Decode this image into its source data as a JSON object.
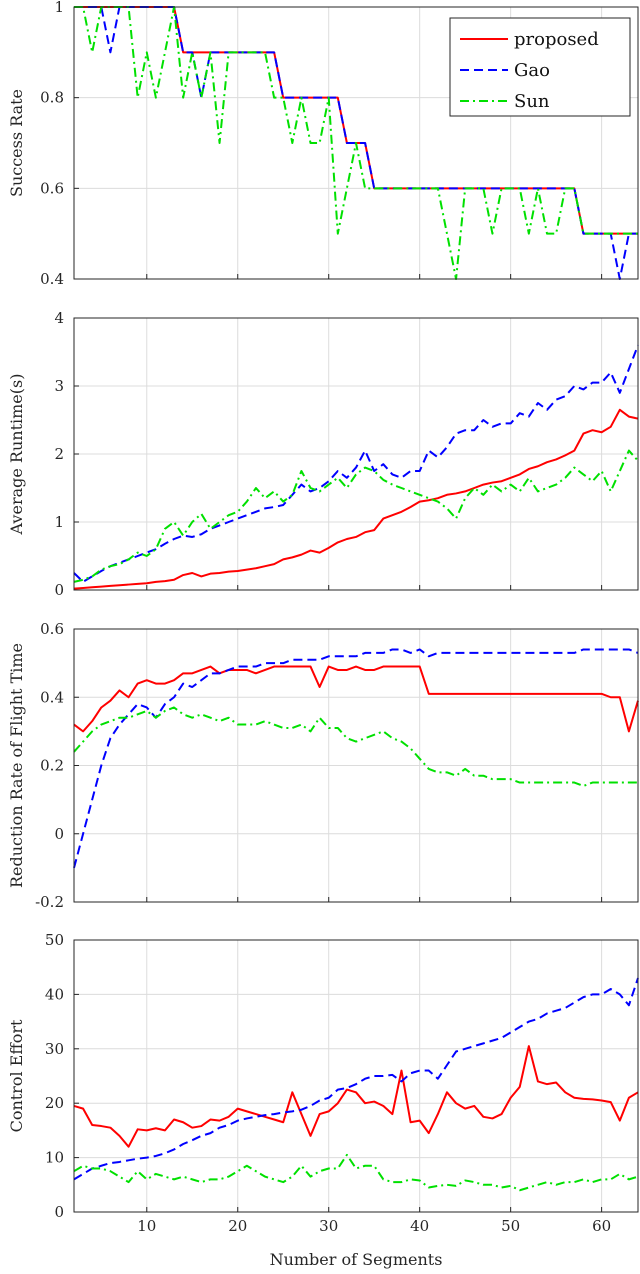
{
  "chart_data": [
    {
      "type": "line",
      "ylabel": "Success Rate",
      "xlabel": "",
      "xlim": [
        2,
        64
      ],
      "ylim": [
        0.4,
        1
      ],
      "xticks": [
        10,
        20,
        30,
        40,
        50,
        60
      ],
      "yticks": [
        0.4,
        0.6,
        0.8,
        1
      ],
      "ytick_labels": [
        "0.4",
        "0.6",
        "0.8",
        "1"
      ],
      "grid": true,
      "legend": "top-right",
      "x": [
        2,
        3,
        4,
        5,
        6,
        7,
        8,
        9,
        10,
        11,
        12,
        13,
        14,
        15,
        16,
        17,
        18,
        19,
        20,
        21,
        22,
        23,
        24,
        25,
        26,
        27,
        28,
        29,
        30,
        31,
        32,
        33,
        34,
        35,
        36,
        37,
        38,
        39,
        40,
        41,
        42,
        43,
        44,
        45,
        46,
        47,
        48,
        49,
        50,
        51,
        52,
        53,
        54,
        55,
        56,
        57,
        58,
        59,
        60,
        61,
        62,
        63,
        64
      ],
      "series": [
        {
          "name": "proposed",
          "color": "#ff0000",
          "dash": "solid",
          "values": [
            1,
            1,
            1,
            1,
            1,
            1,
            1,
            1,
            1,
            1,
            1,
            1,
            0.9,
            0.9,
            0.9,
            0.9,
            0.9,
            0.9,
            0.9,
            0.9,
            0.9,
            0.9,
            0.9,
            0.8,
            0.8,
            0.8,
            0.8,
            0.8,
            0.8,
            0.8,
            0.7,
            0.7,
            0.7,
            0.6,
            0.6,
            0.6,
            0.6,
            0.6,
            0.6,
            0.6,
            0.6,
            0.6,
            0.6,
            0.6,
            0.6,
            0.6,
            0.6,
            0.6,
            0.6,
            0.6,
            0.6,
            0.6,
            0.6,
            0.6,
            0.6,
            0.6,
            0.5,
            0.5,
            0.5,
            0.5,
            0.5,
            0.5,
            0.5
          ]
        },
        {
          "name": "Gao",
          "color": "#0000ff",
          "dash": "dashed",
          "values": [
            1,
            1,
            1,
            1,
            0.9,
            1,
            1,
            1,
            1,
            1,
            1,
            1,
            0.9,
            0.9,
            0.8,
            0.9,
            0.9,
            0.9,
            0.9,
            0.9,
            0.9,
            0.9,
            0.9,
            0.8,
            0.8,
            0.8,
            0.8,
            0.8,
            0.8,
            0.8,
            0.7,
            0.7,
            0.7,
            0.6,
            0.6,
            0.6,
            0.6,
            0.6,
            0.6,
            0.6,
            0.6,
            0.6,
            0.6,
            0.6,
            0.6,
            0.6,
            0.6,
            0.6,
            0.6,
            0.6,
            0.6,
            0.6,
            0.6,
            0.6,
            0.6,
            0.6,
            0.5,
            0.5,
            0.5,
            0.5,
            0.4,
            0.5,
            0.5
          ]
        },
        {
          "name": "Sun",
          "color": "#00e000",
          "dash": "dashdot",
          "values": [
            1,
            1,
            0.9,
            1,
            1,
            1,
            1,
            0.8,
            0.9,
            0.8,
            0.9,
            1,
            0.8,
            0.9,
            0.8,
            0.9,
            0.7,
            0.9,
            0.9,
            0.9,
            0.9,
            0.9,
            0.8,
            0.8,
            0.7,
            0.8,
            0.7,
            0.7,
            0.8,
            0.5,
            0.6,
            0.7,
            0.6,
            0.6,
            0.6,
            0.6,
            0.6,
            0.6,
            0.6,
            0.6,
            0.6,
            0.5,
            0.4,
            0.6,
            0.6,
            0.6,
            0.5,
            0.6,
            0.6,
            0.6,
            0.5,
            0.6,
            0.5,
            0.5,
            0.6,
            0.6,
            0.5,
            0.5,
            0.5,
            0.5,
            0.5,
            0.5,
            0.5
          ]
        }
      ]
    },
    {
      "type": "line",
      "ylabel": "Average Runtime(s)",
      "xlabel": "",
      "xlim": [
        2,
        64
      ],
      "ylim": [
        0,
        4
      ],
      "xticks": [
        10,
        20,
        30,
        40,
        50,
        60
      ],
      "yticks": [
        0,
        1,
        2,
        3,
        4
      ],
      "ytick_labels": [
        "0",
        "1",
        "2",
        "3",
        "4"
      ],
      "grid": true,
      "x": [
        2,
        3,
        4,
        5,
        6,
        7,
        8,
        9,
        10,
        11,
        12,
        13,
        14,
        15,
        16,
        17,
        18,
        19,
        20,
        21,
        22,
        23,
        24,
        25,
        26,
        27,
        28,
        29,
        30,
        31,
        32,
        33,
        34,
        35,
        36,
        37,
        38,
        39,
        40,
        41,
        42,
        43,
        44,
        45,
        46,
        47,
        48,
        49,
        50,
        51,
        52,
        53,
        54,
        55,
        56,
        57,
        58,
        59,
        60,
        61,
        62,
        63,
        64
      ],
      "series": [
        {
          "name": "proposed",
          "color": "#ff0000",
          "dash": "solid",
          "values": [
            0.02,
            0.03,
            0.04,
            0.05,
            0.06,
            0.07,
            0.08,
            0.09,
            0.1,
            0.12,
            0.13,
            0.15,
            0.22,
            0.25,
            0.2,
            0.24,
            0.25,
            0.27,
            0.28,
            0.3,
            0.32,
            0.35,
            0.38,
            0.45,
            0.48,
            0.52,
            0.58,
            0.55,
            0.62,
            0.7,
            0.75,
            0.78,
            0.85,
            0.88,
            1.05,
            1.1,
            1.15,
            1.22,
            1.3,
            1.32,
            1.35,
            1.4,
            1.42,
            1.45,
            1.5,
            1.55,
            1.58,
            1.6,
            1.65,
            1.7,
            1.78,
            1.82,
            1.88,
            1.92,
            1.98,
            2.05,
            2.3,
            2.35,
            2.32,
            2.4,
            2.65,
            2.55,
            2.52
          ]
        },
        {
          "name": "Gao",
          "color": "#0000ff",
          "dash": "dashed",
          "values": [
            0.25,
            0.12,
            0.2,
            0.28,
            0.35,
            0.4,
            0.45,
            0.5,
            0.55,
            0.6,
            0.68,
            0.75,
            0.8,
            0.78,
            0.82,
            0.9,
            0.95,
            1.0,
            1.05,
            1.1,
            1.15,
            1.2,
            1.22,
            1.25,
            1.4,
            1.55,
            1.45,
            1.5,
            1.6,
            1.75,
            1.65,
            1.8,
            2.05,
            1.75,
            1.85,
            1.7,
            1.65,
            1.75,
            1.75,
            2.05,
            1.95,
            2.1,
            2.3,
            2.35,
            2.35,
            2.5,
            2.4,
            2.45,
            2.45,
            2.6,
            2.55,
            2.75,
            2.65,
            2.8,
            2.85,
            3.0,
            2.95,
            3.05,
            3.05,
            3.2,
            2.9,
            3.25,
            3.6
          ]
        },
        {
          "name": "Sun",
          "color": "#00e000",
          "dash": "dashdot",
          "values": [
            0.12,
            0.15,
            0.2,
            0.3,
            0.35,
            0.38,
            0.45,
            0.55,
            0.5,
            0.6,
            0.9,
            1.0,
            0.8,
            1.0,
            1.12,
            0.9,
            1.0,
            1.1,
            1.15,
            1.3,
            1.5,
            1.35,
            1.45,
            1.3,
            1.4,
            1.75,
            1.5,
            1.45,
            1.55,
            1.65,
            1.5,
            1.7,
            1.8,
            1.75,
            1.62,
            1.55,
            1.5,
            1.45,
            1.4,
            1.35,
            1.3,
            1.2,
            1.05,
            1.35,
            1.5,
            1.4,
            1.55,
            1.45,
            1.55,
            1.45,
            1.65,
            1.45,
            1.5,
            1.55,
            1.65,
            1.8,
            1.7,
            1.6,
            1.75,
            1.45,
            1.75,
            2.05,
            1.9
          ]
        }
      ]
    },
    {
      "type": "line",
      "ylabel": "Reduction Rate of Flight Time",
      "xlabel": "",
      "xlim": [
        2,
        64
      ],
      "ylim": [
        -0.2,
        0.6
      ],
      "xticks": [
        10,
        20,
        30,
        40,
        50,
        60
      ],
      "yticks": [
        -0.2,
        0,
        0.2,
        0.4,
        0.6
      ],
      "ytick_labels": [
        "-0.2",
        "0",
        "0.2",
        "0.4",
        "0.6"
      ],
      "grid": true,
      "x": [
        2,
        3,
        4,
        5,
        6,
        7,
        8,
        9,
        10,
        11,
        12,
        13,
        14,
        15,
        16,
        17,
        18,
        19,
        20,
        21,
        22,
        23,
        24,
        25,
        26,
        27,
        28,
        29,
        30,
        31,
        32,
        33,
        34,
        35,
        36,
        37,
        38,
        39,
        40,
        41,
        42,
        43,
        44,
        45,
        46,
        47,
        48,
        49,
        50,
        51,
        52,
        53,
        54,
        55,
        56,
        57,
        58,
        59,
        60,
        61,
        62,
        63,
        64
      ],
      "series": [
        {
          "name": "proposed",
          "color": "#ff0000",
          "dash": "solid",
          "values": [
            0.32,
            0.3,
            0.33,
            0.37,
            0.39,
            0.42,
            0.4,
            0.44,
            0.45,
            0.44,
            0.44,
            0.45,
            0.47,
            0.47,
            0.48,
            0.49,
            0.47,
            0.48,
            0.48,
            0.48,
            0.47,
            0.48,
            0.49,
            0.49,
            0.49,
            0.49,
            0.49,
            0.43,
            0.49,
            0.48,
            0.48,
            0.49,
            0.48,
            0.48,
            0.49,
            0.49,
            0.49,
            0.49,
            0.49,
            0.41,
            0.41,
            0.41,
            0.41,
            0.41,
            0.41,
            0.41,
            0.41,
            0.41,
            0.41,
            0.41,
            0.41,
            0.41,
            0.41,
            0.41,
            0.41,
            0.41,
            0.41,
            0.41,
            0.41,
            0.4,
            0.4,
            0.3,
            0.39
          ]
        },
        {
          "name": "Gao",
          "color": "#0000ff",
          "dash": "dashed",
          "values": [
            -0.1,
            0.0,
            0.1,
            0.2,
            0.28,
            0.32,
            0.35,
            0.38,
            0.37,
            0.34,
            0.38,
            0.4,
            0.44,
            0.43,
            0.45,
            0.47,
            0.47,
            0.48,
            0.49,
            0.49,
            0.49,
            0.5,
            0.5,
            0.5,
            0.51,
            0.51,
            0.51,
            0.51,
            0.52,
            0.52,
            0.52,
            0.52,
            0.53,
            0.53,
            0.53,
            0.54,
            0.54,
            0.53,
            0.54,
            0.52,
            0.53,
            0.53,
            0.53,
            0.53,
            0.53,
            0.53,
            0.53,
            0.53,
            0.53,
            0.53,
            0.53,
            0.53,
            0.53,
            0.53,
            0.53,
            0.53,
            0.54,
            0.54,
            0.54,
            0.54,
            0.54,
            0.54,
            0.53
          ]
        },
        {
          "name": "Sun",
          "color": "#00e000",
          "dash": "dashdot",
          "values": [
            0.24,
            0.27,
            0.3,
            0.32,
            0.33,
            0.34,
            0.34,
            0.35,
            0.36,
            0.34,
            0.36,
            0.37,
            0.35,
            0.34,
            0.35,
            0.34,
            0.33,
            0.34,
            0.32,
            0.32,
            0.32,
            0.33,
            0.32,
            0.31,
            0.31,
            0.32,
            0.3,
            0.34,
            0.31,
            0.31,
            0.28,
            0.27,
            0.28,
            0.29,
            0.3,
            0.28,
            0.27,
            0.25,
            0.22,
            0.19,
            0.18,
            0.18,
            0.17,
            0.19,
            0.17,
            0.17,
            0.16,
            0.16,
            0.16,
            0.15,
            0.15,
            0.15,
            0.15,
            0.15,
            0.15,
            0.15,
            0.14,
            0.15,
            0.15,
            0.15,
            0.15,
            0.15,
            0.15
          ]
        }
      ]
    },
    {
      "type": "line",
      "ylabel": "Control Effort",
      "xlabel": "Number of Segments",
      "xlim": [
        2,
        64
      ],
      "ylim": [
        0,
        50
      ],
      "xticks": [
        10,
        20,
        30,
        40,
        50,
        60
      ],
      "yticks": [
        0,
        10,
        20,
        30,
        40,
        50
      ],
      "ytick_labels": [
        "0",
        "10",
        "20",
        "30",
        "40",
        "50"
      ],
      "grid": true,
      "x": [
        2,
        3,
        4,
        5,
        6,
        7,
        8,
        9,
        10,
        11,
        12,
        13,
        14,
        15,
        16,
        17,
        18,
        19,
        20,
        21,
        22,
        23,
        24,
        25,
        26,
        27,
        28,
        29,
        30,
        31,
        32,
        33,
        34,
        35,
        36,
        37,
        38,
        39,
        40,
        41,
        42,
        43,
        44,
        45,
        46,
        47,
        48,
        49,
        50,
        51,
        52,
        53,
        54,
        55,
        56,
        57,
        58,
        59,
        60,
        61,
        62,
        63,
        64
      ],
      "series": [
        {
          "name": "proposed",
          "color": "#ff0000",
          "dash": "solid",
          "values": [
            19.5,
            19,
            16,
            15.8,
            15.5,
            14,
            12,
            15.2,
            15,
            15.4,
            15,
            17,
            16.5,
            15.5,
            15.8,
            17,
            16.8,
            17.5,
            19,
            18.5,
            18,
            17.5,
            17,
            16.5,
            22,
            18,
            14,
            18,
            18.5,
            20,
            22.5,
            22,
            20,
            20.3,
            19.5,
            18,
            26,
            16.5,
            16.8,
            14.5,
            18,
            22,
            20,
            19,
            19.5,
            17.5,
            17.2,
            18,
            21,
            23,
            30.5,
            24,
            23.5,
            23.8,
            22,
            21,
            20.8,
            20.7,
            20.5,
            20.2,
            16.8,
            21,
            22
          ]
        },
        {
          "name": "Gao",
          "color": "#0000ff",
          "dash": "dashed",
          "values": [
            6,
            7,
            8,
            8.5,
            9,
            9.2,
            9.5,
            9.8,
            10,
            10.3,
            10.8,
            11.5,
            12.5,
            13.2,
            14,
            14.5,
            15.5,
            16,
            16.8,
            17.2,
            17.5,
            17.8,
            18,
            18.3,
            18.5,
            18.8,
            19.5,
            20.5,
            21,
            22.5,
            22.8,
            23.5,
            24.5,
            25,
            25,
            25.2,
            24,
            25.5,
            26,
            26,
            24.5,
            27,
            29.5,
            30,
            30.5,
            31,
            31.5,
            32,
            33,
            34,
            35,
            35.5,
            36.5,
            37,
            37.5,
            38.5,
            39.5,
            40,
            40,
            41,
            40,
            38,
            43
          ]
        },
        {
          "name": "Sun",
          "color": "#00e000",
          "dash": "dashdot",
          "values": [
            7.5,
            8.5,
            8,
            8,
            7.5,
            6.5,
            5.5,
            7.5,
            6,
            7,
            6.5,
            6,
            6.5,
            6,
            5.5,
            6,
            6,
            6.5,
            7.5,
            8.5,
            7.5,
            6.5,
            6,
            5.5,
            6.5,
            8.5,
            6.5,
            7.5,
            8,
            8,
            10.5,
            8,
            8.5,
            8.5,
            6,
            5.5,
            5.5,
            6,
            5.8,
            4.5,
            4.8,
            5,
            4.8,
            5.8,
            5.5,
            5,
            5,
            4.5,
            4.8,
            4,
            4.5,
            5,
            5.5,
            5,
            5.5,
            5.5,
            6,
            5.5,
            6,
            6,
            7,
            6,
            6.5
          ]
        }
      ]
    }
  ]
}
